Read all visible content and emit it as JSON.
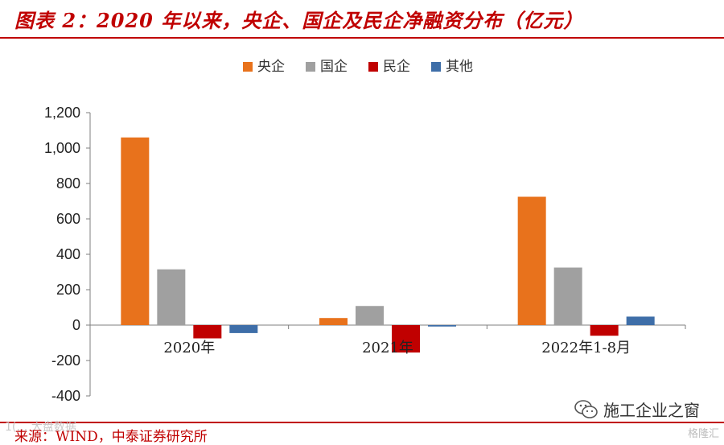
{
  "header": {
    "title": "图表 2：2020 年以来，央企、国企及民企净融资分布（亿元）"
  },
  "footer": {
    "source": "来源：WIND，中泰证券研究所",
    "watermark_left": "1(… 大盘数据",
    "watermark_right": "施工企业之窗",
    "watermark_corner": "格隆汇"
  },
  "colors": {
    "accent": "#c00000",
    "央企": "#e8721c",
    "国企": "#a0a0a0",
    "民企": "#c00000",
    "其他": "#3e6ea8"
  },
  "chart_data": {
    "type": "bar",
    "categories": [
      "2020年",
      "2021年",
      "2022年1-8月"
    ],
    "series": [
      {
        "name": "央企",
        "values": [
          1060,
          40,
          725
        ]
      },
      {
        "name": "国企",
        "values": [
          315,
          108,
          325
        ]
      },
      {
        "name": "民企",
        "values": [
          -75,
          -155,
          -60
        ]
      },
      {
        "name": "其他",
        "values": [
          -45,
          -8,
          48
        ]
      }
    ],
    "yticks": [
      "1,200",
      "1,000",
      "800",
      "600",
      "400",
      "200",
      "0",
      "-200",
      "-400"
    ],
    "ylim": [
      -400,
      1200
    ],
    "grid": false,
    "legend_position": "top-center",
    "xlabel": "",
    "ylabel": ""
  }
}
